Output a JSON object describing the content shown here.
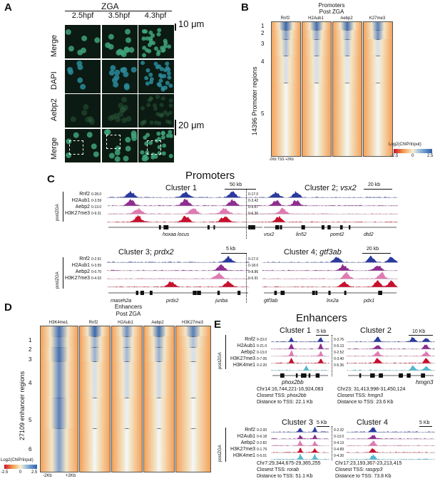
{
  "panels": {
    "a": "A",
    "b": "B",
    "c": "C",
    "d": "D",
    "e": "E"
  },
  "panel_a": {
    "zga": "ZGA",
    "times": [
      "2.5hpf",
      "3.5hpf",
      "4.3hpf"
    ],
    "rows": [
      "Merge",
      "DAPI",
      "Aebp2",
      "Merge"
    ],
    "scale_top": "10 μm",
    "scale_bottom": "20 μm"
  },
  "panel_b": {
    "title1": "Promoters",
    "title2": "Post ZGA",
    "cols": [
      "Rnf2",
      "H2Aub1",
      "Aebp2",
      "K27me3"
    ],
    "clusters": [
      "1",
      "2",
      "3",
      "4",
      "5"
    ],
    "ylabel": "14396 Promoter regions",
    "xaxis": "-2Kb  TSS  +2Kb",
    "legend_title": "Log2(ChIP/Input)",
    "legend_ticks": [
      "-2.5",
      "0",
      "2.5"
    ]
  },
  "panel_c": {
    "title": "Promoters",
    "side": "postZGA",
    "tracks": [
      "Rnf2",
      "H2Aub1",
      "Aebp2",
      "H3K27me3"
    ],
    "c1": {
      "title": "Cluster 1",
      "scale": "50 kb",
      "ranges": [
        "0-28.0",
        "0-3.59",
        "0-13.0",
        "0-9.31"
      ],
      "genes": [
        "hoxaa locus"
      ]
    },
    "c2": {
      "title": "Cluster 2; ",
      "gene": "vsx2",
      "scale": "20 kb",
      "ranges": [
        "0-17.0",
        "0-3.42",
        "0-9.67",
        "0-6.36"
      ],
      "genes": [
        "vsx2",
        "lin52",
        "pomt2",
        "dtd2"
      ]
    },
    "c3": {
      "title": "Cluster 3; ",
      "gene": "prdx2",
      "scale": "5 kb",
      "ranges": [
        "0-2.51",
        "0-3.55",
        "0-0.70",
        "0-4.02"
      ],
      "genes": [
        "rnaseh2a",
        "prdx2",
        "junba"
      ]
    },
    "c4": {
      "title": "Cluster 4; ",
      "gene": "gtf3ab",
      "scale": "20 kb",
      "ranges": [
        "0-17.0",
        "0-18.0",
        "0-8.86",
        "0-6.91"
      ],
      "genes": [
        "gtf3ab",
        "lnx2a",
        "pdx1"
      ]
    }
  },
  "panel_d": {
    "title1": "Enhancers",
    "title2": "Post ZGA",
    "cols": [
      "H3K4me1",
      "Rnf2",
      "H2Aub1",
      "Aebp2",
      "H3K27me3"
    ],
    "clusters": [
      "1",
      "2",
      "3",
      "4",
      "5",
      "6"
    ],
    "ylabel": "27109 enhancer regions",
    "xaxis_left": "-2Kb",
    "xaxis_right": "+2Kb",
    "legend_title": "Log2(ChIP/Input)",
    "legend_ticks": [
      "-2.5",
      "0",
      "2.5"
    ]
  },
  "panel_e": {
    "title": "Enhancers",
    "side": "postZGA",
    "tracks": [
      "Rnf2",
      "H2Aub1",
      "Aebp2",
      "H3K27me3",
      "H3K4me1"
    ],
    "c1": {
      "title": "Cluster 1",
      "scale": "5 kb",
      "ranges": [
        "0-23.0",
        "0-21.0",
        "0-13.0",
        "0-7.05",
        "0-2.20"
      ],
      "gene": "phox2bb",
      "coords": "Chr14:16,744,221-16,924,083",
      "tss_label": "Closest TSS: ",
      "tss": "phox2bb",
      "dist": "Distance to TSS: 22.1 Kb"
    },
    "c2": {
      "title": "Cluster 2",
      "scale": "10 Kb",
      "ranges": [
        "0-3.76",
        "0-5.13",
        "0-2.52",
        "0-3.40",
        "0-5.36"
      ],
      "gene": "hmgn3",
      "coords": "Chr23: 31,413,998-31,450,124",
      "tss_label": "Closest TSS: ",
      "tss": "hmgn3",
      "dist": "Distance to TSS: 23.6 Kb"
    },
    "c3": {
      "title": "Cluster 3",
      "scale": "5 Kb",
      "ranges": [
        "0-2.00",
        "0-6.18",
        "0-2.82",
        "0-1.79",
        "0-5.01"
      ],
      "coords": "Chr7:29,344,675-29,365,255",
      "tss_label": "Closest TSS: ",
      "tss": "rorab",
      "dist": "Distance to TSS: 51.1 Kb"
    },
    "c4": {
      "title": "Cluster 4",
      "scale": "5 Kb",
      "ranges": [
        "0-2.32",
        "0-13.0",
        "0-4.13",
        "0-4.89",
        "0-4.30"
      ],
      "coords": "Chr17:23,193,367-23,213,415",
      "tss_label": "Closest TSS: ",
      "tss": "rasgrp3",
      "dist": "Distance to TSS: 73.8 Kb"
    }
  },
  "colors": {
    "rnf2": "#2b3a9e",
    "h2aub1": "#8e2d8f",
    "aebp2": "#e07ab2",
    "h3k27me3": "#c8102e",
    "h3k4me1": "#4fb8d0",
    "heat_low": "#f59a4a",
    "heat_mid": "#f3f0d8",
    "heat_high": "#2f5fa8"
  }
}
